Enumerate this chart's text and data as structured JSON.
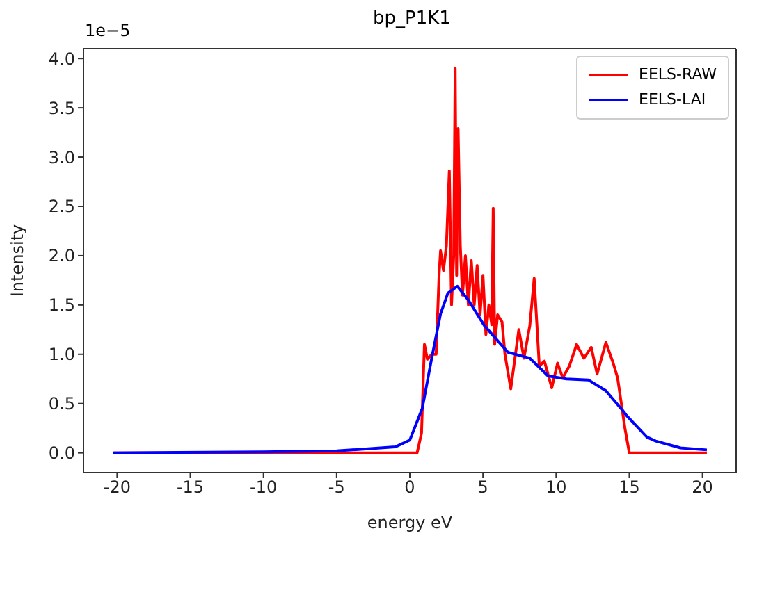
{
  "chart_data": {
    "type": "line",
    "title": "bp_P1K1",
    "xlabel": "energy eV",
    "ylabel": "Intensity",
    "annotations": [
      "1e−5"
    ],
    "xlim": [
      -22.3,
      22.3
    ],
    "xticks": [
      -20,
      -15,
      -10,
      -5,
      0,
      5,
      10,
      15,
      20
    ],
    "ylim": [
      -0.2,
      4.1
    ],
    "yticks": [
      {
        "value": 0,
        "label": "0.0"
      },
      {
        "value": 0.5,
        "label": "0.5"
      },
      {
        "value": 1,
        "label": "1.0"
      },
      {
        "value": 1.5,
        "label": "1.5"
      },
      {
        "value": 2,
        "label": "2.0"
      },
      {
        "value": 2.5,
        "label": "2.5"
      },
      {
        "value": 3,
        "label": "3.0"
      },
      {
        "value": 3.5,
        "label": "3.5"
      },
      {
        "value": 4,
        "label": "4.0"
      }
    ],
    "legend": "top right",
    "marker": "none",
    "line_style": "solid",
    "series": [
      {
        "name": "EELS-RAW",
        "color": "#ff0000",
        "x": [
          -20.3,
          0.5,
          0.8,
          1.0,
          1.2,
          1.5,
          1.8,
          2.0,
          2.1,
          2.3,
          2.5,
          2.7,
          2.85,
          3.0,
          3.1,
          3.2,
          3.3,
          3.45,
          3.6,
          3.8,
          4.0,
          4.2,
          4.4,
          4.6,
          4.8,
          5.0,
          5.2,
          5.4,
          5.6,
          5.7,
          5.8,
          6.0,
          6.3,
          6.5,
          6.9,
          7.45,
          7.8,
          8.2,
          8.5,
          8.85,
          9.2,
          9.7,
          10.1,
          10.45,
          10.9,
          11.4,
          11.9,
          12.4,
          12.8,
          13.4,
          13.9,
          14.2,
          14.7,
          15.0,
          20.3
        ],
        "values": [
          0,
          0,
          0.2,
          1.1,
          0.95,
          1.0,
          1.0,
          1.8,
          2.05,
          1.85,
          2.1,
          2.86,
          1.5,
          2.0,
          3.9,
          1.8,
          3.29,
          2.1,
          1.6,
          2.0,
          1.5,
          1.95,
          1.5,
          1.9,
          1.4,
          1.8,
          1.2,
          1.5,
          1.3,
          2.48,
          1.1,
          1.4,
          1.33,
          1.0,
          0.65,
          1.25,
          0.96,
          1.29,
          1.77,
          0.88,
          0.93,
          0.66,
          0.91,
          0.76,
          0.88,
          1.1,
          0.96,
          1.07,
          0.8,
          1.12,
          0.91,
          0.76,
          0.25,
          0,
          0
        ]
      },
      {
        "name": "EELS-LAI",
        "color": "#0000ff",
        "x": [
          -20.3,
          -10,
          -5,
          -3,
          -1,
          0,
          0.85,
          1.47,
          2.1,
          2.6,
          3.25,
          4.0,
          5.1,
          6.7,
          8.2,
          9.45,
          10.7,
          12.2,
          13.4,
          14.6,
          14.8,
          16.2,
          16.8,
          18.5,
          20.3
        ],
        "values": [
          0,
          0.01,
          0.02,
          0.04,
          0.06,
          0.13,
          0.45,
          0.94,
          1.41,
          1.62,
          1.69,
          1.55,
          1.29,
          1.02,
          0.96,
          0.78,
          0.75,
          0.74,
          0.63,
          0.42,
          0.38,
          0.16,
          0.12,
          0.05,
          0.03
        ]
      }
    ]
  }
}
